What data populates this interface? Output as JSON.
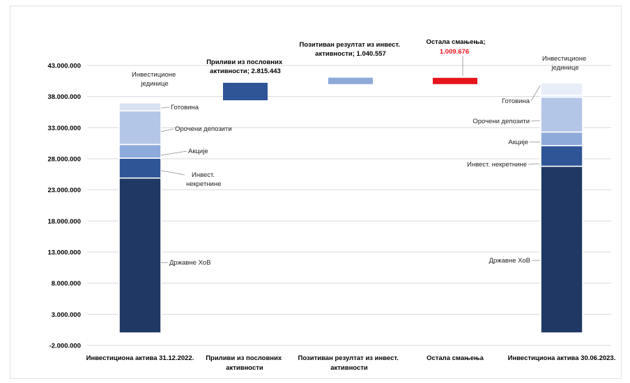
{
  "chart_data": {
    "type": "bar",
    "subtype": "waterfall",
    "title": "",
    "xlabel": "",
    "ylabel": "",
    "ylim": [
      -2000000,
      43000000
    ],
    "yticks": [
      -2000000,
      3000000,
      8000000,
      13000000,
      18000000,
      23000000,
      28000000,
      33000000,
      38000000,
      43000000
    ],
    "ytick_labels": [
      "-2.000.000",
      "3.000.000",
      "8.000.000",
      "13.000.000",
      "18.000.000",
      "23.000.000",
      "28.000.000",
      "33.000.000",
      "38.000.000",
      "43.000.000"
    ],
    "grid": true,
    "legend": "none",
    "categories": [
      "Инвестициона актива 31.12.2022.",
      "Приливи из пословних активности",
      "Позитиван резултат из инвест. активности",
      "Остала смањења",
      "Инвестициона актива 30.06.2023."
    ],
    "stacked_bars": [
      {
        "category": "Инвестициона актива 31.12.2022.",
        "segments": [
          {
            "name": "Државне ХоВ",
            "value": 24900000,
            "color": "#1f3864"
          },
          {
            "name": "Инвест. некретнине",
            "value": 3200000,
            "color": "#2f5597"
          },
          {
            "name": "Акције",
            "value": 2200000,
            "color": "#8eaadb"
          },
          {
            "name": "Орочени депозити",
            "value": 5400000,
            "color": "#b4c6e7"
          },
          {
            "name": "Готовина",
            "value": 1300000,
            "color": "#d9e2f3"
          },
          {
            "name": "Инвестиционе јединице",
            "value": 200000,
            "color": "#e8eef8"
          }
        ]
      },
      {
        "category": "Инвестициона актива 30.06.2023.",
        "segments": [
          {
            "name": "Државне ХоВ",
            "value": 26800000,
            "color": "#1f3864"
          },
          {
            "name": "Инвест. некретнине",
            "value": 3300000,
            "color": "#2f5597"
          },
          {
            "name": "Акције",
            "value": 2200000,
            "color": "#8eaadb"
          },
          {
            "name": "Орочени депозити",
            "value": 5600000,
            "color": "#b4c6e7"
          },
          {
            "name": "Готовина",
            "value": 300000,
            "color": "#d9e2f3"
          },
          {
            "name": "Инвестиционе јединице",
            "value": 2000000,
            "color": "#e8eef8"
          }
        ]
      }
    ],
    "floating_bars": [
      {
        "category": "Приливи из пословних активности",
        "bottom": 37400000,
        "value": 2815443,
        "color": "#2f5597"
      },
      {
        "category": "Позитиван резултат из инвест. активности",
        "bottom": 40000000,
        "value": 1040557,
        "color": "#8eaadb"
      },
      {
        "category": "Остала смањења",
        "bottom": 40000000,
        "value": 1009676,
        "color": "#e8141b"
      }
    ],
    "bar_annotations": [
      {
        "category": "Приливи из пословних активности",
        "lines": [
          "Приливи из пословних",
          "активности; 2.815.443"
        ],
        "color": "#000000"
      },
      {
        "category": "Позитиван резултат из инвест. активности",
        "lines": [
          "Позитиван резултат из инвест.",
          "активности; 1.040.557"
        ],
        "color": "#000000"
      },
      {
        "category": "Остала смањења",
        "lines": [
          "Остала смањења;"
        ],
        "color": "#000000"
      },
      {
        "category": "Остала смањења",
        "lines": [
          "1.009.676"
        ],
        "color": "#e8141b"
      }
    ]
  },
  "labels": {
    "left": {
      "units": [
        "Инвестиционе",
        "јединице"
      ],
      "cash": "Готовина",
      "deposits": "Орочени депозити",
      "shares": "Акције",
      "realestate": [
        "Инвест.",
        "некретнине"
      ],
      "bonds": "Државне ХоВ"
    },
    "right": {
      "units": [
        "Инвестиционе",
        "јединице"
      ],
      "cash": "Готовина",
      "deposits": "Орочени депозити",
      "shares": "Акције",
      "realestate": "Инвест. некретнине",
      "bonds": "Државне ХоВ"
    },
    "xcat": [
      [
        "Инвестициона актива 31.12.2022."
      ],
      [
        "Приливи из пословних",
        "активности"
      ],
      [
        "Позитиван резултат из инвест.",
        "активности"
      ],
      [
        "Остала смањења"
      ],
      [
        "Инвестициона актива 30.06.2023."
      ]
    ]
  }
}
